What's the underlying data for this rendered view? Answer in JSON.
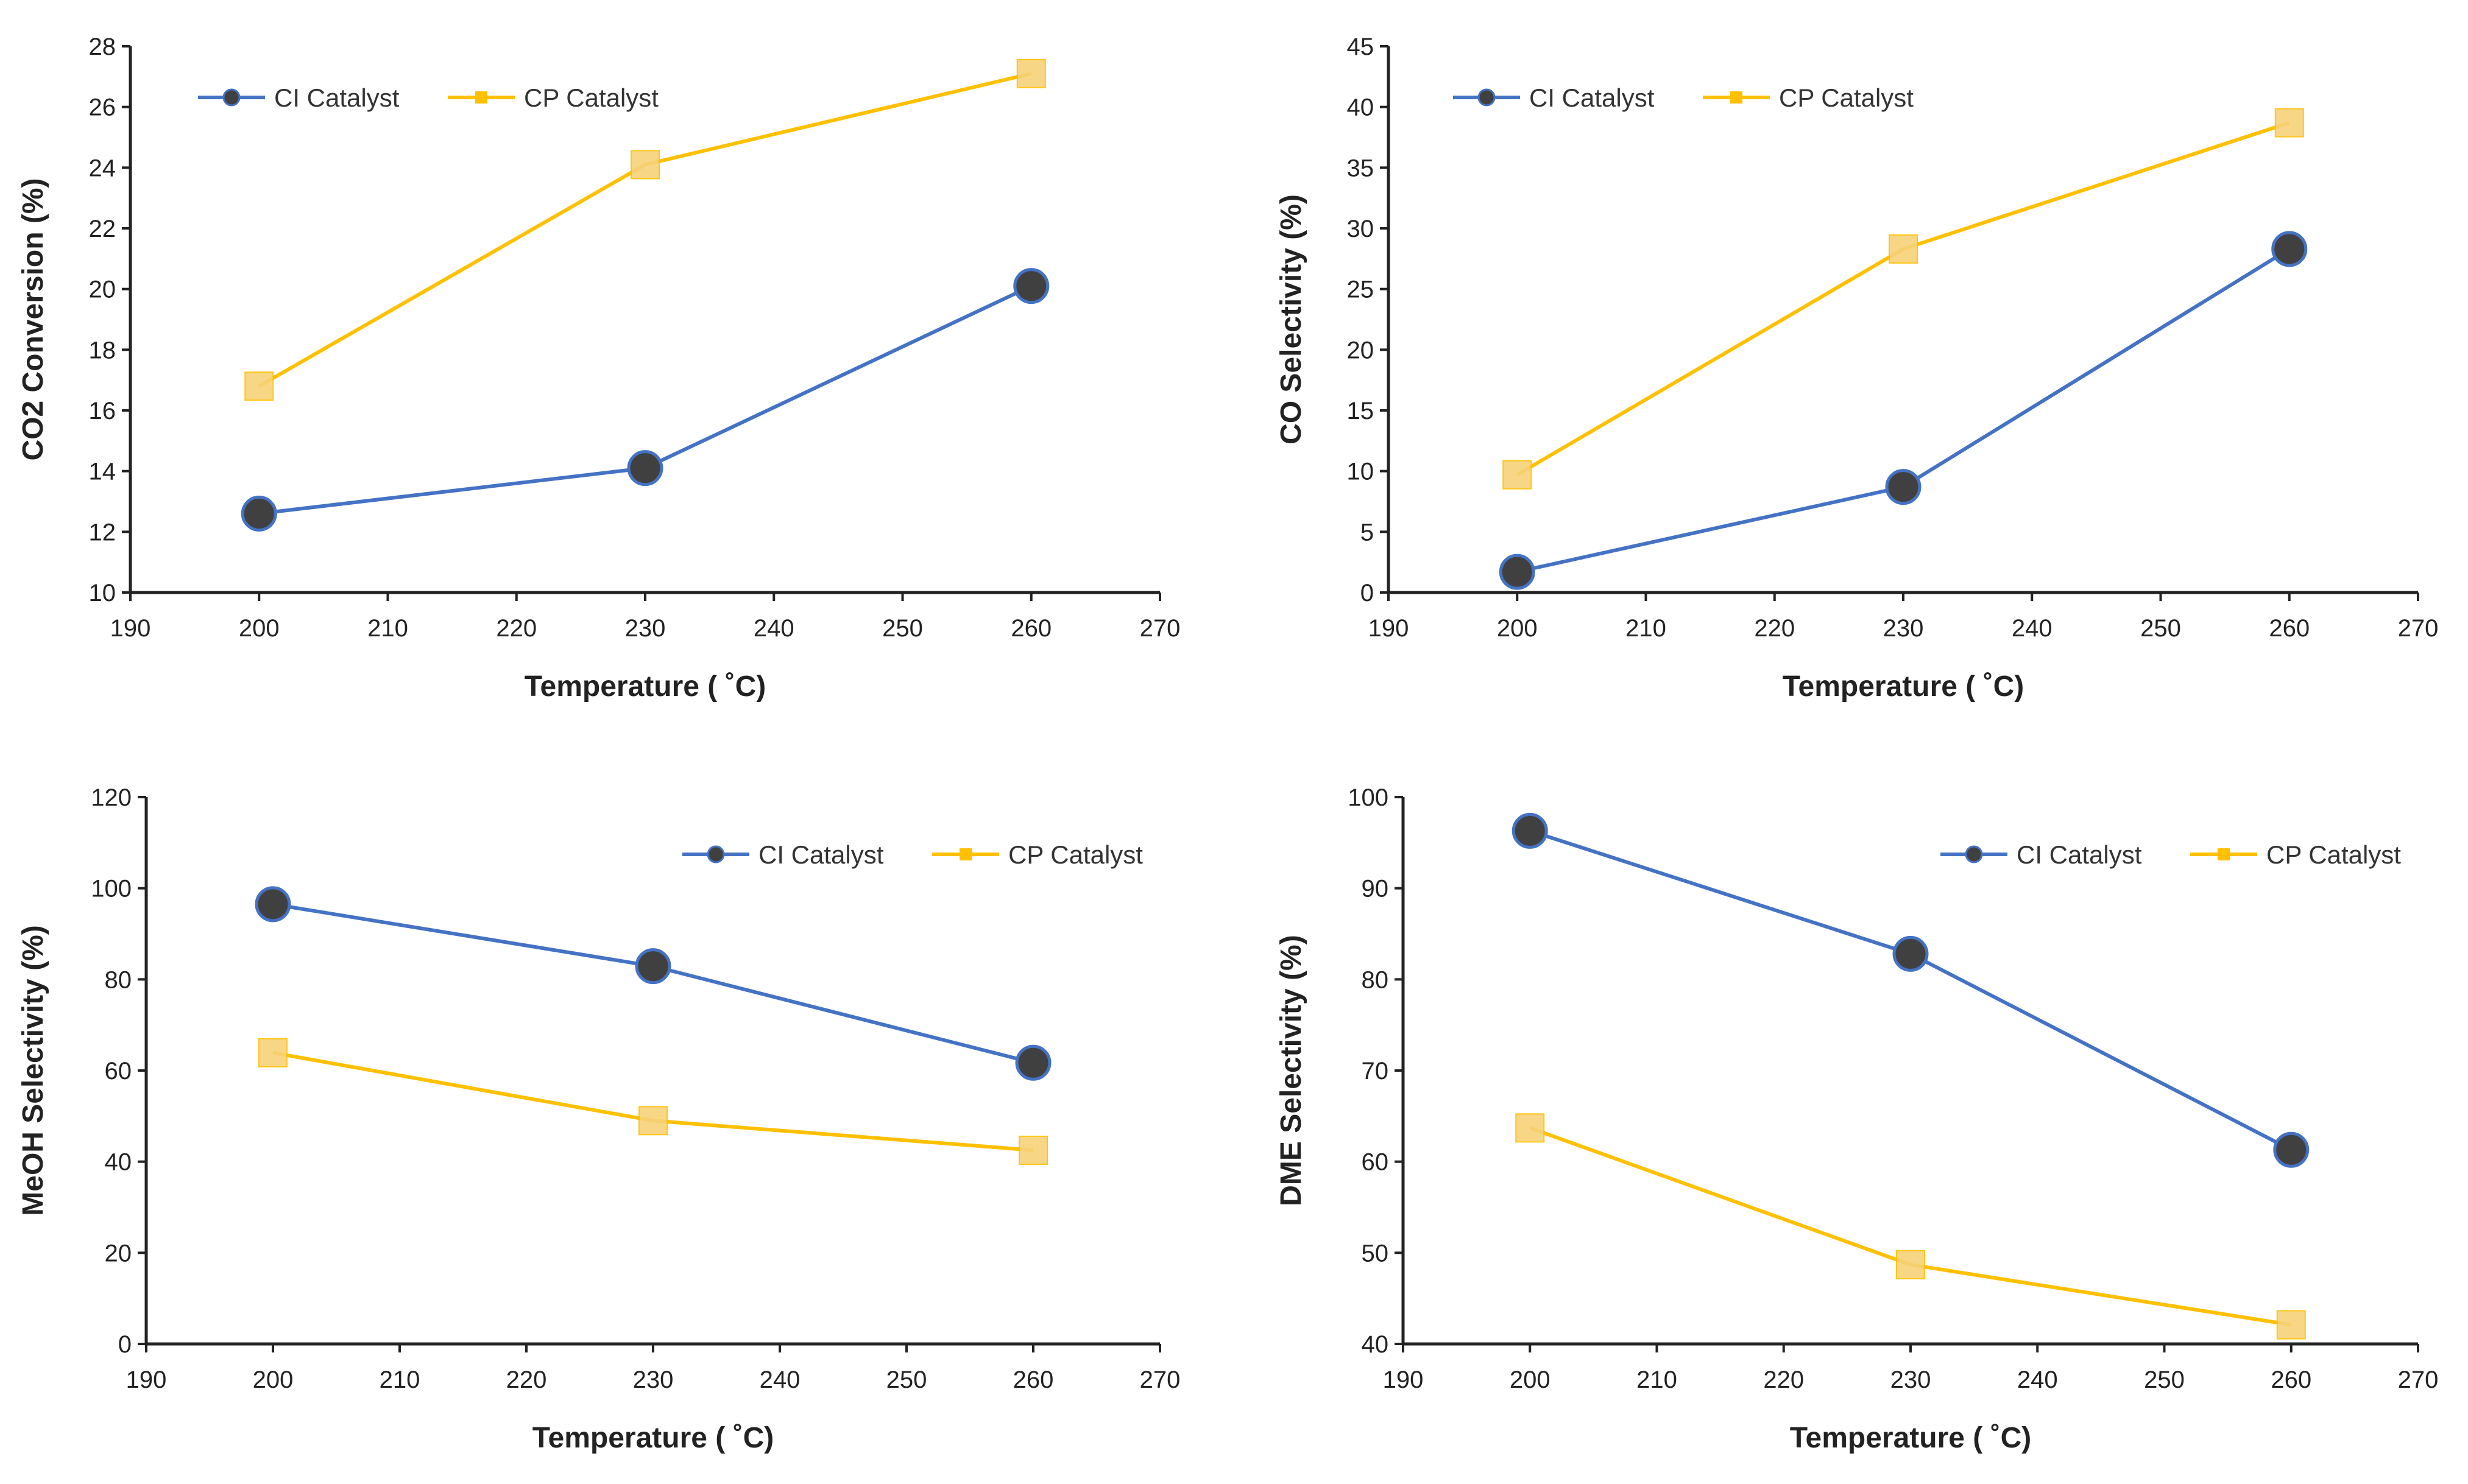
{
  "colors": {
    "ci": "#4472C4",
    "ci_marker": "#404040",
    "cp": "#FFC000",
    "cp_marker": "#F7D27A",
    "axis": "#222222"
  },
  "chart_data": [
    {
      "type": "line",
      "title": "",
      "xlabel": "Temperature ( ˚C)",
      "ylabel": "CO2 Conversion (%)",
      "xlim": [
        190,
        270
      ],
      "ylim": [
        10,
        28
      ],
      "xticks": [
        "190",
        "200",
        "210",
        "220",
        "230",
        "240",
        "250",
        "260",
        "270"
      ],
      "yticks": [
        "10",
        "12",
        "14",
        "16",
        "18",
        "20",
        "22",
        "24",
        "26",
        "28"
      ],
      "legend_position": "top-left",
      "x": [
        200,
        230,
        260
      ],
      "series": [
        {
          "name": "CI Catalyst",
          "values": [
            12.6,
            14.1,
            20.1
          ]
        },
        {
          "name": "CP Catalyst",
          "values": [
            16.8,
            24.1,
            27.1
          ]
        }
      ]
    },
    {
      "type": "line",
      "title": "",
      "xlabel": "Temperature ( ˚C)",
      "ylabel": "CO Selectivity (%)",
      "xlim": [
        190,
        270
      ],
      "ylim": [
        0,
        45
      ],
      "xticks": [
        "190",
        "200",
        "210",
        "220",
        "230",
        "240",
        "250",
        "260",
        "270"
      ],
      "yticks": [
        "0",
        "5",
        "10",
        "15",
        "20",
        "25",
        "30",
        "35",
        "40",
        "45"
      ],
      "legend_position": "top-left",
      "x": [
        200,
        230,
        260
      ],
      "series": [
        {
          "name": "CI Catalyst",
          "values": [
            1.7,
            8.7,
            28.3
          ]
        },
        {
          "name": "CP Catalyst",
          "values": [
            9.7,
            28.3,
            38.7
          ]
        }
      ]
    },
    {
      "type": "line",
      "title": "",
      "xlabel": "Temperature ( ˚C)",
      "ylabel": "MeOH Selectivity (%)",
      "xlim": [
        190,
        270
      ],
      "ylim": [
        0,
        120
      ],
      "xticks": [
        "190",
        "200",
        "210",
        "220",
        "230",
        "240",
        "250",
        "260",
        "270"
      ],
      "yticks": [
        "0",
        "20",
        "40",
        "60",
        "80",
        "100",
        "120"
      ],
      "legend_position": "top-right",
      "x": [
        200,
        230,
        260
      ],
      "series": [
        {
          "name": "CI Catalyst",
          "values": [
            96.5,
            82.9,
            61.7
          ]
        },
        {
          "name": "CP Catalyst",
          "values": [
            63.9,
            49.0,
            42.5
          ]
        }
      ]
    },
    {
      "type": "line",
      "title": "",
      "xlabel": "Temperature ( ˚C)",
      "ylabel": "DME Selectivity (%)",
      "xlim": [
        190,
        270
      ],
      "ylim": [
        40,
        100
      ],
      "xticks": [
        "190",
        "200",
        "210",
        "220",
        "230",
        "240",
        "250",
        "260",
        "270"
      ],
      "yticks": [
        "40",
        "50",
        "60",
        "70",
        "80",
        "90",
        "100"
      ],
      "legend_position": "top-right",
      "x": [
        200,
        230,
        260
      ],
      "series": [
        {
          "name": "CI Catalyst",
          "values": [
            96.3,
            82.8,
            61.3
          ]
        },
        {
          "name": "CP Catalyst",
          "values": [
            63.7,
            48.7,
            42.1
          ]
        }
      ]
    }
  ]
}
